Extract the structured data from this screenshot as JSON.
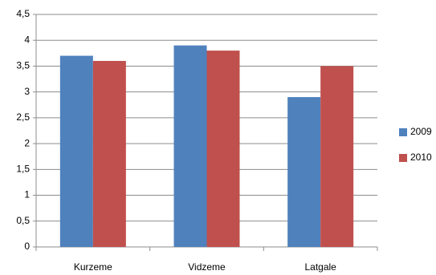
{
  "chart_data": {
    "type": "bar",
    "categories": [
      "Kurzeme",
      "Vidzeme",
      "Latgale"
    ],
    "series": [
      {
        "name": "2009",
        "color": "#4f81bd",
        "values": [
          3.7,
          3.9,
          2.9
        ]
      },
      {
        "name": "2010",
        "color": "#c0504d",
        "values": [
          3.6,
          3.8,
          3.5
        ]
      }
    ],
    "ylim": [
      0,
      4.5
    ],
    "yticks": [
      0,
      {
        "value": 0.5,
        "label": "0,5"
      },
      1,
      {
        "value": 1.5,
        "label": "1,5"
      },
      2,
      {
        "value": 2.5,
        "label": "2,5"
      },
      3,
      {
        "value": 3.5,
        "label": "3,5"
      },
      4,
      {
        "value": 4.5,
        "label": "4,5"
      }
    ],
    "grid": true,
    "legend": "right"
  }
}
